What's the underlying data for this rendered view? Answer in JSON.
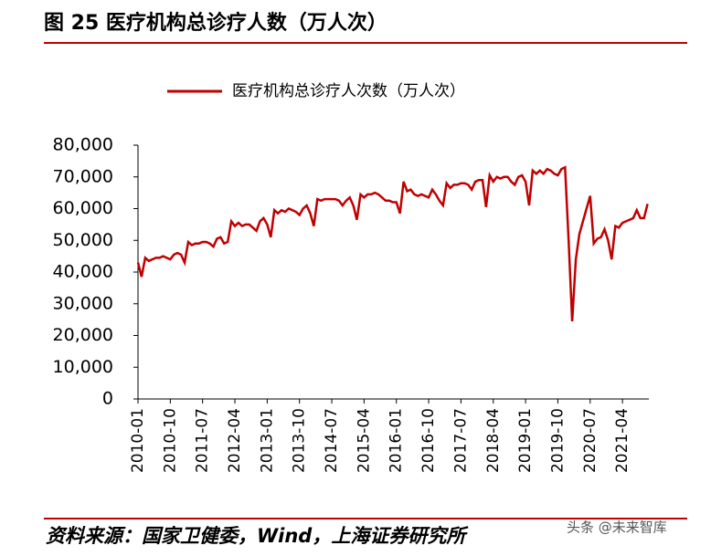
{
  "header": {
    "title": "图 25 医疗机构总诊疗人数（万人次）"
  },
  "chart_data": {
    "type": "line",
    "categories": [
      "2010-01",
      null,
      null,
      null,
      null,
      null,
      null,
      null,
      null,
      "2010-10",
      null,
      null,
      null,
      null,
      null,
      null,
      null,
      null,
      "2011-07",
      null,
      null,
      null,
      null,
      null,
      null,
      null,
      null,
      "2012-04",
      null,
      null,
      null,
      null,
      null,
      null,
      null,
      null,
      "2013-01",
      null,
      null,
      null,
      null,
      null,
      null,
      null,
      null,
      "2013-10",
      null,
      null,
      null,
      null,
      null,
      null,
      null,
      null,
      "2014-07",
      null,
      null,
      null,
      null,
      null,
      null,
      null,
      null,
      "2015-04",
      null,
      null,
      null,
      null,
      null,
      null,
      null,
      null,
      "2016-01",
      null,
      null,
      null,
      null,
      null,
      null,
      null,
      null,
      "2016-10",
      null,
      null,
      null,
      null,
      null,
      null,
      null,
      null,
      "2017-07",
      null,
      null,
      null,
      null,
      null,
      null,
      null,
      null,
      "2018-04",
      null,
      null,
      null,
      null,
      null,
      null,
      null,
      null,
      "2019-01",
      null,
      null,
      null,
      null,
      null,
      null,
      null,
      null,
      "2019-10",
      null,
      null,
      null,
      null,
      null,
      null,
      null,
      null,
      "2020-07",
      null,
      null,
      null,
      null,
      null,
      null,
      null,
      null,
      "2021-04",
      null,
      null,
      null,
      null,
      null,
      null,
      null
    ],
    "series": [
      {
        "name": "医疗机构总诊疗人次数（万人次）",
        "color": "#c00000",
        "values": [
          43000,
          38500,
          44500,
          43500,
          44000,
          44500,
          44500,
          45000,
          44500,
          44000,
          45500,
          46000,
          45500,
          43000,
          49500,
          48500,
          49000,
          49000,
          49500,
          49500,
          49000,
          48000,
          50500,
          51000,
          49000,
          49500,
          56000,
          54500,
          55500,
          54500,
          55000,
          55000,
          54000,
          53000,
          56000,
          57000,
          55000,
          51000,
          59500,
          58500,
          59500,
          59000,
          60000,
          59500,
          59000,
          58000,
          60000,
          61000,
          58500,
          54500,
          63000,
          62500,
          63000,
          63000,
          63000,
          63000,
          62500,
          61000,
          62500,
          63500,
          61000,
          56500,
          64500,
          63500,
          64500,
          64500,
          65000,
          64500,
          63500,
          62500,
          62500,
          62000,
          62000,
          58500,
          68500,
          65500,
          66000,
          64500,
          64000,
          64500,
          64000,
          63500,
          66000,
          64500,
          62500,
          61000,
          68000,
          66500,
          67500,
          67500,
          68000,
          68000,
          67500,
          66000,
          68500,
          69000,
          69000,
          60500,
          70500,
          68500,
          70000,
          69500,
          70000,
          70000,
          68500,
          67500,
          70000,
          70500,
          68500,
          61000,
          72000,
          71000,
          72000,
          71000,
          72500,
          72000,
          71000,
          70500,
          72500,
          73000,
          50000,
          24500,
          44000,
          52000,
          56000,
          60000,
          64000,
          49000,
          50500,
          51000,
          53500,
          50000,
          44000,
          54500,
          54000,
          55500,
          56000,
          56500,
          57000,
          59500,
          57000,
          57000,
          61500
        ]
      }
    ],
    "ylim": [
      0,
      80000
    ],
    "yticks": [
      0,
      {
        "value": 10000,
        "label": "10,000"
      },
      {
        "value": 20000,
        "label": "20,000"
      },
      {
        "value": 30000,
        "label": "30,000"
      },
      {
        "value": 40000,
        "label": "40,000"
      },
      {
        "value": 50000,
        "label": "50,000"
      },
      {
        "value": 60000,
        "label": "60,000"
      },
      {
        "value": 70000,
        "label": "70,000"
      },
      {
        "value": 80000,
        "label": "80,000"
      }
    ],
    "legend": "top"
  },
  "footer": {
    "source": "资料来源：国家卫健委，Wind，上海证券研究所",
    "watermark": "头条 @未来智库"
  }
}
